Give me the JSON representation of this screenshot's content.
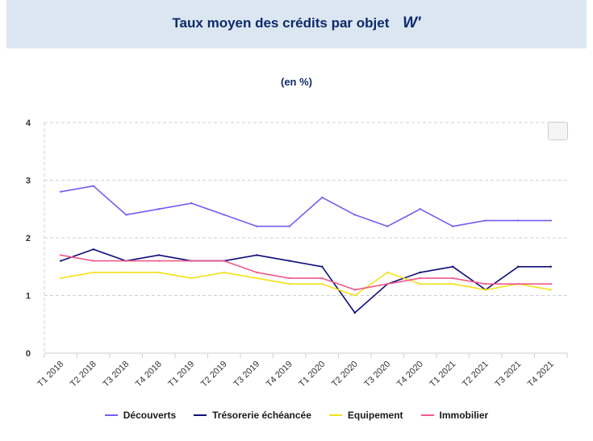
{
  "header": {
    "title": "Taux moyen des crédits par objet",
    "logo": "W'"
  },
  "chart_data": {
    "type": "line",
    "subtitle": "(en %)",
    "categories": [
      "T1 2018",
      "T2 2018",
      "T3 2018",
      "T4 2018",
      "T1 2019",
      "T2 2019",
      "T3 2019",
      "T4 2019",
      "T1 2020",
      "T2 2020",
      "T3 2020",
      "T4 2020",
      "T1 2021",
      "T2 2021",
      "T3 2021",
      "T4 2021"
    ],
    "ylim": [
      0,
      4
    ],
    "yticks": [
      "0",
      "1",
      "2",
      "3",
      "4"
    ],
    "grid": true,
    "legend_position": "bottom",
    "series": [
      {
        "name": "Découverts",
        "color": "#7a5af5",
        "values": [
          2.8,
          2.9,
          2.4,
          2.5,
          2.6,
          2.4,
          2.2,
          2.2,
          2.7,
          2.4,
          2.2,
          2.5,
          2.2,
          2.3,
          2.3,
          2.3
        ]
      },
      {
        "name": "Trésorerie échéancée",
        "color": "#0d0d7a",
        "values": [
          1.6,
          1.8,
          1.6,
          1.7,
          1.6,
          1.6,
          1.7,
          1.6,
          1.5,
          0.7,
          1.2,
          1.4,
          1.5,
          1.1,
          1.5,
          1.5
        ]
      },
      {
        "name": "Equipement",
        "color": "#f2e21b",
        "values": [
          1.3,
          1.4,
          1.4,
          1.4,
          1.3,
          1.4,
          1.3,
          1.2,
          1.2,
          1.0,
          1.4,
          1.2,
          1.2,
          1.1,
          1.2,
          1.1
        ]
      },
      {
        "name": "Immobilier",
        "color": "#f0588a",
        "values": [
          1.7,
          1.6,
          1.6,
          1.6,
          1.6,
          1.6,
          1.4,
          1.3,
          1.3,
          1.1,
          1.2,
          1.3,
          1.3,
          1.2,
          1.2,
          1.2
        ]
      }
    ]
  }
}
